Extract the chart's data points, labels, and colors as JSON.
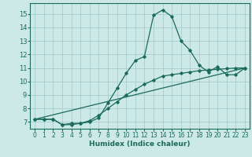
{
  "xlabel": "Humidex (Indice chaleur)",
  "ylabel": "",
  "xlim": [
    -0.5,
    23.5
  ],
  "ylim": [
    6.5,
    15.8
  ],
  "xticks": [
    0,
    1,
    2,
    3,
    4,
    5,
    6,
    7,
    8,
    9,
    10,
    11,
    12,
    13,
    14,
    15,
    16,
    17,
    18,
    19,
    20,
    21,
    22,
    23
  ],
  "yticks": [
    7,
    8,
    9,
    10,
    11,
    12,
    13,
    14,
    15
  ],
  "bg_color": "#cce9e8",
  "grid_color": "#a8cccc",
  "line_color": "#1a6b5a",
  "line1_x": [
    0,
    1,
    2,
    3,
    4,
    5,
    6,
    7,
    8,
    9,
    10,
    11,
    12,
    13,
    14,
    15,
    16,
    17,
    18,
    19,
    20,
    21,
    22,
    23
  ],
  "line1_y": [
    7.2,
    7.2,
    7.2,
    6.8,
    6.8,
    6.9,
    7.0,
    7.3,
    8.4,
    9.5,
    10.6,
    11.55,
    11.85,
    14.9,
    15.3,
    14.8,
    13.0,
    12.3,
    11.2,
    10.7,
    11.1,
    10.5,
    10.5,
    11.0
  ],
  "line2_x": [
    0,
    1,
    2,
    3,
    4,
    5,
    6,
    7,
    8,
    9,
    10,
    11,
    12,
    13,
    14,
    15,
    16,
    17,
    18,
    19,
    20,
    21,
    22,
    23
  ],
  "line2_y": [
    7.2,
    7.2,
    7.2,
    6.8,
    6.9,
    6.9,
    7.1,
    7.5,
    8.0,
    8.5,
    9.0,
    9.4,
    9.8,
    10.1,
    10.4,
    10.5,
    10.6,
    10.7,
    10.8,
    10.85,
    10.9,
    10.95,
    11.0,
    11.0
  ],
  "line3_x": [
    0,
    23
  ],
  "line3_y": [
    7.2,
    11.0
  ]
}
